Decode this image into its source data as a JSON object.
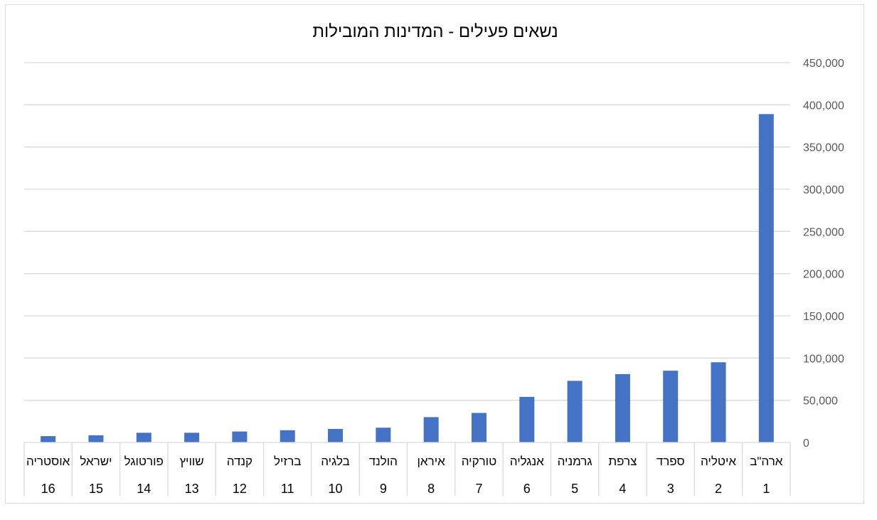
{
  "chart_data": {
    "type": "bar",
    "title": "נשאים פעילים - המדינות המובילות",
    "xlabel": "",
    "ylabel": "",
    "ylim": [
      0,
      450000
    ],
    "yticks": [
      0,
      50000,
      100000,
      150000,
      200000,
      250000,
      300000,
      350000,
      400000,
      450000
    ],
    "ytick_labels": [
      "0",
      "50,000",
      "100,000",
      "150,000",
      "200,000",
      "250,000",
      "300,000",
      "350,000",
      "400,000",
      "450,000"
    ],
    "grid": true,
    "legend": "none",
    "axis_side": "right",
    "direction": "right-to-left",
    "bar_color": "#4472C4",
    "categories": [
      "ארה\"ב",
      "איטליה",
      "ספרד",
      "צרפת",
      "גרמניה",
      "אנגליה",
      "טורקיה",
      "איראן",
      "הולנד",
      "בלגיה",
      "ברזיל",
      "קנדה",
      "שוויץ",
      "פורטוגל",
      "ישראל",
      "אוסטריה"
    ],
    "ranks": [
      "1",
      "2",
      "3",
      "4",
      "5",
      "6",
      "7",
      "8",
      "9",
      "10",
      "11",
      "12",
      "13",
      "14",
      "15",
      "16"
    ],
    "values": [
      389000,
      95000,
      85000,
      81000,
      73000,
      54000,
      35000,
      30000,
      17500,
      16000,
      14500,
      13000,
      11500,
      11500,
      8500,
      7500
    ]
  }
}
